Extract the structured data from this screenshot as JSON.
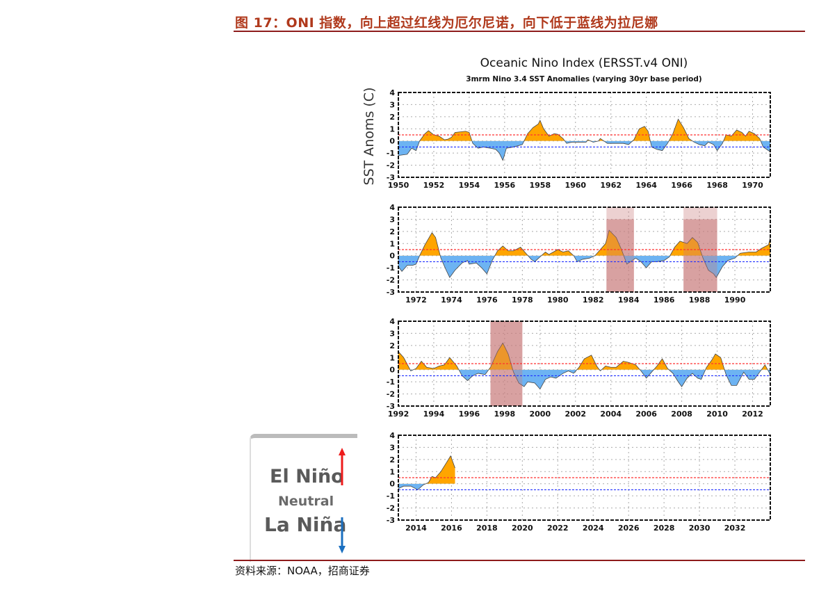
{
  "header": {
    "title": "图 17：ONI 指数，向上超过红线为厄尔尼诺，向下低于蓝线为拉尼娜"
  },
  "footer": {
    "source": "资料来源：NOAA，招商证券"
  },
  "legend": {
    "el_nino": "El Niño",
    "neutral": "Neutral",
    "la_nina": "La Niña",
    "up_color": "#ee1c1c",
    "down_color": "#1a6fc0"
  },
  "colors": {
    "positive": "#ffa500",
    "negative": "#6db3f2",
    "upper_line": "#ff3030",
    "lower_line": "#2030ff",
    "shade": "#c97a7a"
  },
  "chart_data": {
    "type": "area",
    "title": "Oceanic Nino Index (ERSST.v4 ONI)",
    "subtitle": "3mrm Nino 3.4 SST Anomalies (varying 30yr base period)",
    "ylabel": "SST Anoms (C)",
    "ylim": [
      -3,
      4
    ],
    "yticks": [
      "4",
      "3",
      "2",
      "1",
      "0",
      "-1",
      "-2",
      "-3"
    ],
    "thresholds": {
      "el_nino": 0.5,
      "la_nina": -0.5
    },
    "grid": true,
    "panels": [
      {
        "xlim": [
          1950,
          1971
        ],
        "xticks": [
          "1950",
          "1952",
          "1954",
          "1956",
          "1958",
          "1960",
          "1962",
          "1964",
          "1966",
          "1968",
          "1970"
        ],
        "shaded": []
      },
      {
        "xlim": [
          1971,
          1992
        ],
        "xticks": [
          "1972",
          "1974",
          "1976",
          "1978",
          "1980",
          "1982",
          "1984",
          "1986",
          "1988",
          "1990"
        ],
        "shaded": [
          [
            1982.75,
            1984.3
          ],
          [
            1987.1,
            1989.0
          ]
        ]
      },
      {
        "xlim": [
          1992,
          2013
        ],
        "xticks": [
          "1992",
          "1994",
          "1996",
          "1998",
          "2000",
          "2002",
          "2004",
          "2006",
          "2008",
          "2010",
          "2012"
        ],
        "shaded": [
          [
            1997.2,
            1999.0
          ]
        ]
      },
      {
        "xlim": [
          2013,
          2034
        ],
        "xticks": [
          "2014",
          "2016",
          "2018",
          "2020",
          "2022",
          "2024",
          "2026",
          "2028",
          "2030",
          "2032"
        ],
        "shaded": []
      }
    ],
    "series": [
      [
        1950,
        -1.2
      ],
      [
        1950.5,
        -1.1
      ],
      [
        1950.75,
        -0.6
      ],
      [
        1951.0,
        -0.8
      ],
      [
        1951.2,
        0
      ],
      [
        1951.5,
        0.6
      ],
      [
        1951.7,
        0.85
      ],
      [
        1952,
        0.5
      ],
      [
        1952.3,
        0.4
      ],
      [
        1952.6,
        0.1
      ],
      [
        1952.8,
        0.15
      ],
      [
        1953,
        0.3
      ],
      [
        1953.2,
        0.7
      ],
      [
        1953.5,
        0.75
      ],
      [
        1953.8,
        0.8
      ],
      [
        1954,
        0.7
      ],
      [
        1954.2,
        -0.2
      ],
      [
        1954.5,
        -0.6
      ],
      [
        1954.8,
        -0.5
      ],
      [
        1955.2,
        -0.6
      ],
      [
        1955.5,
        -0.7
      ],
      [
        1955.7,
        -1.0
      ],
      [
        1955.9,
        -1.6
      ],
      [
        1956.1,
        -0.6
      ],
      [
        1956.5,
        -0.5
      ],
      [
        1957,
        -0.3
      ],
      [
        1957.3,
        0.6
      ],
      [
        1957.6,
        1.1
      ],
      [
        1957.9,
        1.4
      ],
      [
        1958,
        1.7
      ],
      [
        1958.2,
        1.0
      ],
      [
        1958.5,
        0.4
      ],
      [
        1958.8,
        0.6
      ],
      [
        1959,
        0.55
      ],
      [
        1959.3,
        0.2
      ],
      [
        1959.5,
        -0.2
      ],
      [
        1959.8,
        -0.1
      ],
      [
        1960.2,
        -0.1
      ],
      [
        1960.6,
        -0.1
      ],
      [
        1960.7,
        0.1
      ],
      [
        1961,
        -0.1
      ],
      [
        1961.3,
        0
      ],
      [
        1961.4,
        0.2
      ],
      [
        1961.6,
        0
      ],
      [
        1961.8,
        -0.2
      ],
      [
        1962.3,
        -0.2
      ],
      [
        1962.7,
        -0.2
      ],
      [
        1963,
        -0.3
      ],
      [
        1963.3,
        0.1
      ],
      [
        1963.6,
        1.0
      ],
      [
        1963.9,
        1.2
      ],
      [
        1964.1,
        0.8
      ],
      [
        1964.3,
        -0.5
      ],
      [
        1964.6,
        -0.7
      ],
      [
        1964.9,
        -0.8
      ],
      [
        1965.2,
        -0.2
      ],
      [
        1965.5,
        0.6
      ],
      [
        1965.8,
        1.8
      ],
      [
        1966.1,
        1.1
      ],
      [
        1966.4,
        0.2
      ],
      [
        1966.7,
        -0.1
      ],
      [
        1967,
        -0.3
      ],
      [
        1967.3,
        -0.4
      ],
      [
        1967.5,
        -0.1
      ],
      [
        1967.8,
        -0.3
      ],
      [
        1968,
        -0.8
      ],
      [
        1968.3,
        -0.2
      ],
      [
        1968.5,
        0.5
      ],
      [
        1968.8,
        0.4
      ],
      [
        1969.1,
        0.9
      ],
      [
        1969.4,
        0.7
      ],
      [
        1969.6,
        0.4
      ],
      [
        1969.8,
        0.8
      ],
      [
        1970.1,
        0.6
      ],
      [
        1970.4,
        0.2
      ],
      [
        1970.6,
        -0.5
      ],
      [
        1971,
        -0.9
      ],
      [
        1971.2,
        -1.3
      ],
      [
        1971.5,
        -0.8
      ],
      [
        1971.8,
        -0.8
      ],
      [
        1972,
        -0.7
      ],
      [
        1972.2,
        0
      ],
      [
        1972.5,
        0.9
      ],
      [
        1972.9,
        1.9
      ],
      [
        1973.1,
        1.5
      ],
      [
        1973.4,
        -0.2
      ],
      [
        1973.7,
        -1.2
      ],
      [
        1973.9,
        -1.8
      ],
      [
        1974.2,
        -1.2
      ],
      [
        1974.6,
        -0.6
      ],
      [
        1974.9,
        -0.4
      ],
      [
        1975,
        -0.7
      ],
      [
        1975.4,
        -0.6
      ],
      [
        1975.7,
        -1.0
      ],
      [
        1976,
        -1.5
      ],
      [
        1976.3,
        -0.4
      ],
      [
        1976.6,
        0.4
      ],
      [
        1976.9,
        0.8
      ],
      [
        1977.2,
        0.4
      ],
      [
        1977.5,
        0.4
      ],
      [
        1977.9,
        0.7
      ],
      [
        1978.2,
        0.2
      ],
      [
        1978.5,
        -0.3
      ],
      [
        1978.7,
        -0.5
      ],
      [
        1979,
        -0.1
      ],
      [
        1979.3,
        0.3
      ],
      [
        1979.5,
        0.1
      ],
      [
        1980,
        0.5
      ],
      [
        1980.3,
        0.3
      ],
      [
        1980.6,
        0.4
      ],
      [
        1980.9,
        0.0
      ],
      [
        1981.1,
        -0.5
      ],
      [
        1981.4,
        -0.3
      ],
      [
        1981.8,
        -0.2
      ],
      [
        1982.1,
        0.0
      ],
      [
        1982.4,
        0.5
      ],
      [
        1982.7,
        1.0
      ],
      [
        1982.9,
        2.1
      ],
      [
        1983.3,
        1.5
      ],
      [
        1983.6,
        0.5
      ],
      [
        1983.9,
        -0.7
      ],
      [
        1984.1,
        -0.5
      ],
      [
        1984.4,
        -0.2
      ],
      [
        1984.7,
        -0.5
      ],
      [
        1985,
        -1.0
      ],
      [
        1985.3,
        -0.5
      ],
      [
        1985.6,
        -0.5
      ],
      [
        1986,
        -0.4
      ],
      [
        1986.3,
        -0.1
      ],
      [
        1986.6,
        0.7
      ],
      [
        1986.9,
        1.2
      ],
      [
        1987.1,
        1.1
      ],
      [
        1987.3,
        1.0
      ],
      [
        1987.6,
        1.5
      ],
      [
        1987.9,
        1.1
      ],
      [
        1988.2,
        -0.2
      ],
      [
        1988.5,
        -1.2
      ],
      [
        1988.8,
        -1.5
      ],
      [
        1988.95,
        -1.8
      ],
      [
        1989.3,
        -0.9
      ],
      [
        1989.6,
        -0.4
      ],
      [
        1990,
        -0.2
      ],
      [
        1990.3,
        0.2
      ],
      [
        1990.8,
        0.3
      ],
      [
        1991.2,
        0.3
      ],
      [
        1991.5,
        0.6
      ],
      [
        1991.9,
        0.9
      ],
      [
        1992,
        1.5
      ],
      [
        1992.3,
        1.0
      ],
      [
        1992.7,
        -0.1
      ],
      [
        1993,
        0.1
      ],
      [
        1993.3,
        0.7
      ],
      [
        1993.6,
        0.2
      ],
      [
        1994,
        0.1
      ],
      [
        1994.3,
        0.3
      ],
      [
        1994.6,
        0.4
      ],
      [
        1994.9,
        1.0
      ],
      [
        1995.3,
        0.3
      ],
      [
        1995.6,
        -0.5
      ],
      [
        1995.9,
        -0.9
      ],
      [
        1996.2,
        -0.5
      ],
      [
        1996.5,
        -0.3
      ],
      [
        1996.9,
        -0.4
      ],
      [
        1997.2,
        0.2
      ],
      [
        1997.6,
        1.5
      ],
      [
        1997.9,
        2.2
      ],
      [
        1998.2,
        1.3
      ],
      [
        1998.5,
        -0.2
      ],
      [
        1998.8,
        -1.1
      ],
      [
        1999.1,
        -1.4
      ],
      [
        1999.3,
        -1.0
      ],
      [
        1999.7,
        -1.1
      ],
      [
        2000,
        -1.6
      ],
      [
        2000.3,
        -0.8
      ],
      [
        2000.6,
        -0.6
      ],
      [
        2000.9,
        -0.7
      ],
      [
        2001.3,
        -0.3
      ],
      [
        2001.6,
        -0.1
      ],
      [
        2001.9,
        -0.3
      ],
      [
        2002.2,
        0.2
      ],
      [
        2002.5,
        0.9
      ],
      [
        2002.9,
        1.2
      ],
      [
        2003.2,
        0.3
      ],
      [
        2003.4,
        -0.1
      ],
      [
        2003.7,
        0.3
      ],
      [
        2004,
        0.2
      ],
      [
        2004.3,
        0.2
      ],
      [
        2004.7,
        0.7
      ],
      [
        2005,
        0.6
      ],
      [
        2005.4,
        0.4
      ],
      [
        2005.7,
        -0.1
      ],
      [
        2006,
        -0.7
      ],
      [
        2006.3,
        -0.2
      ],
      [
        2006.6,
        0.3
      ],
      [
        2006.9,
        0.9
      ],
      [
        2007.2,
        0.1
      ],
      [
        2007.5,
        -0.3
      ],
      [
        2007.8,
        -1.0
      ],
      [
        2008,
        -1.4
      ],
      [
        2008.3,
        -0.7
      ],
      [
        2008.6,
        -0.3
      ],
      [
        2008.9,
        -0.7
      ],
      [
        2009.1,
        -0.8
      ],
      [
        2009.4,
        0.2
      ],
      [
        2009.7,
        0.8
      ],
      [
        2009.9,
        1.3
      ],
      [
        2010.2,
        1.0
      ],
      [
        2010.5,
        -0.4
      ],
      [
        2010.8,
        -1.3
      ],
      [
        2011.1,
        -1.3
      ],
      [
        2011.5,
        -0.2
      ],
      [
        2011.8,
        -0.8
      ],
      [
        2012.1,
        -0.8
      ],
      [
        2012.4,
        -0.2
      ],
      [
        2012.7,
        0.4
      ],
      [
        2013,
        -0.4
      ],
      [
        2013.3,
        -0.2
      ],
      [
        2013.7,
        -0.2
      ],
      [
        2014.1,
        -0.5
      ],
      [
        2014.4,
        -0.1
      ],
      [
        2014.7,
        0.1
      ],
      [
        2014.9,
        0.6
      ],
      [
        2015.1,
        0.5
      ],
      [
        2015.4,
        1.0
      ],
      [
        2015.7,
        1.7
      ],
      [
        2015.95,
        2.3
      ],
      [
        2016.2,
        1.3
      ]
    ]
  }
}
